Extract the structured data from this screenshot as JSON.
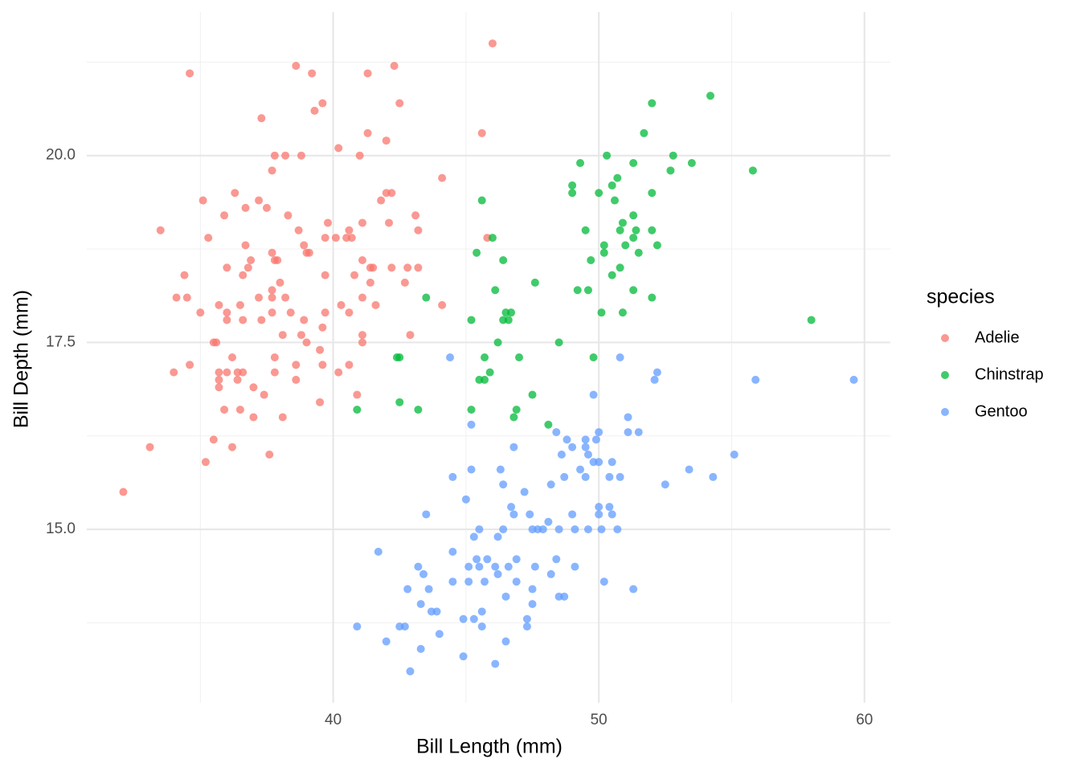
{
  "chart_data": {
    "type": "scatter",
    "x_label": "Bill Length (mm)",
    "y_label": "Bill Depth (mm)",
    "legend_title": "species",
    "legend": "right",
    "grid": true,
    "xlim": [
      30.725,
      60.975
    ],
    "ylim": [
      12.68,
      21.92
    ],
    "xticks": [
      40,
      50,
      60
    ],
    "yticks": [
      {
        "value": 15,
        "label": "15.0"
      },
      {
        "value": 17.5,
        "label": "17.5"
      },
      {
        "value": 20,
        "label": "20.0"
      }
    ],
    "x_minor_ticks": [
      35,
      45,
      55
    ],
    "y_minor_ticks": [
      13.75,
      16.25,
      18.75,
      21.25
    ],
    "series": [
      {
        "name": "Adelie",
        "color": "#F8766D",
        "x": [
          32.1,
          33.1,
          33.5,
          34.0,
          34.1,
          34.4,
          34.5,
          34.6,
          34.6,
          35.0,
          35.1,
          35.2,
          35.3,
          35.5,
          35.5,
          35.6,
          35.7,
          35.7,
          35.7,
          35.7,
          35.9,
          35.9,
          36.0,
          36.0,
          36.0,
          36.0,
          36.2,
          36.2,
          36.3,
          36.4,
          36.4,
          36.5,
          36.5,
          36.6,
          36.6,
          36.6,
          36.7,
          36.7,
          36.8,
          36.9,
          37.0,
          37.0,
          37.2,
          37.2,
          37.3,
          37.3,
          37.4,
          37.5,
          37.6,
          37.7,
          37.7,
          37.7,
          37.7,
          37.7,
          37.8,
          37.8,
          37.8,
          37.8,
          37.9,
          38.0,
          38.1,
          38.1,
          38.2,
          38.2,
          38.3,
          38.4,
          38.6,
          38.6,
          38.6,
          38.7,
          38.8,
          38.8,
          38.9,
          38.9,
          39.0,
          39.0,
          39.1,
          39.2,
          39.3,
          39.5,
          39.5,
          39.6,
          39.6,
          39.6,
          39.7,
          39.7,
          39.7,
          39.8,
          40.1,
          40.2,
          40.2,
          40.3,
          40.5,
          40.6,
          40.6,
          40.6,
          40.7,
          40.8,
          40.9,
          41.0,
          41.1,
          41.1,
          41.1,
          41.1,
          41.1,
          41.3,
          41.3,
          41.4,
          41.5,
          41.4,
          41.6,
          41.8,
          42.0,
          42.0,
          42.1,
          42.2,
          42.3,
          42.5,
          42.7,
          42.8,
          42.9,
          43.1,
          43.2,
          43.2,
          44.1,
          44.1,
          45.6,
          45.8,
          46.0,
          42.2
        ],
        "values": [
          15.5,
          16.1,
          19.0,
          17.1,
          18.1,
          18.4,
          18.1,
          21.1,
          17.2,
          17.9,
          19.4,
          15.9,
          18.9,
          16.2,
          17.5,
          17.5,
          17.1,
          17.0,
          16.9,
          18.0,
          19.2,
          16.6,
          17.8,
          17.9,
          18.5,
          17.1,
          17.3,
          16.1,
          19.5,
          17.1,
          17.0,
          18.0,
          16.6,
          18.4,
          17.8,
          17.1,
          19.3,
          18.8,
          18.5,
          18.6,
          16.9,
          16.5,
          19.4,
          18.1,
          20.5,
          17.8,
          16.8,
          19.3,
          16.0,
          19.8,
          18.7,
          18.2,
          18.1,
          17.9,
          17.3,
          17.1,
          20.0,
          18.6,
          18.6,
          18.3,
          17.6,
          16.5,
          20.0,
          18.1,
          19.2,
          17.9,
          21.2,
          17.2,
          17.0,
          19.0,
          20.0,
          17.6,
          17.8,
          18.8,
          18.7,
          17.5,
          18.7,
          21.1,
          20.6,
          16.7,
          17.4,
          20.7,
          17.7,
          17.2,
          17.9,
          18.4,
          18.9,
          19.1,
          18.9,
          20.1,
          17.1,
          18.0,
          18.9,
          19.0,
          17.9,
          17.2,
          18.9,
          18.4,
          16.8,
          20.0,
          19.1,
          18.1,
          17.6,
          17.5,
          18.6,
          21.1,
          20.3,
          18.5,
          18.5,
          18.3,
          18.0,
          19.4,
          20.2,
          19.5,
          19.1,
          18.5,
          21.2,
          20.7,
          18.3,
          18.5,
          17.6,
          19.2,
          19.0,
          18.5,
          19.7,
          18.0,
          20.3,
          18.9,
          21.5,
          19.5
        ]
      },
      {
        "name": "Chinstrap",
        "color": "#00BA38",
        "x": [
          40.9,
          42.4,
          42.5,
          42.5,
          43.2,
          43.5,
          45.2,
          45.2,
          45.4,
          45.5,
          45.6,
          45.7,
          45.7,
          45.9,
          46.0,
          46.1,
          46.2,
          46.4,
          46.4,
          46.5,
          46.6,
          46.7,
          46.8,
          46.9,
          47.0,
          47.5,
          47.6,
          48.1,
          48.5,
          49.0,
          49.0,
          49.2,
          49.3,
          49.5,
          49.6,
          49.7,
          49.8,
          50.0,
          50.1,
          50.2,
          50.2,
          50.3,
          50.5,
          50.5,
          50.6,
          50.7,
          50.8,
          50.8,
          50.9,
          50.9,
          51.0,
          51.3,
          51.3,
          51.3,
          51.3,
          51.4,
          51.5,
          51.7,
          52.0,
          52.0,
          52.0,
          52.0,
          52.2,
          52.7,
          52.8,
          53.5,
          54.2,
          55.8,
          58.0
        ],
        "values": [
          16.6,
          17.3,
          17.3,
          16.7,
          16.6,
          18.1,
          16.6,
          17.8,
          18.7,
          17.0,
          19.4,
          17.3,
          17.0,
          17.1,
          18.9,
          18.2,
          17.5,
          18.6,
          17.8,
          17.9,
          17.8,
          17.9,
          16.5,
          16.6,
          17.3,
          16.8,
          18.3,
          16.4,
          17.5,
          19.6,
          19.5,
          18.2,
          19.9,
          19.0,
          18.2,
          18.6,
          17.3,
          19.5,
          17.9,
          18.7,
          18.8,
          20.0,
          18.4,
          19.6,
          19.4,
          19.7,
          18.5,
          19.0,
          19.1,
          17.9,
          18.8,
          18.9,
          19.2,
          18.2,
          19.9,
          19.0,
          18.7,
          20.3,
          19.5,
          20.7,
          19.0,
          18.1,
          18.8,
          19.8,
          20.0,
          19.9,
          20.8,
          19.8,
          17.8
        ]
      },
      {
        "name": "Gentoo",
        "color": "#619CFF",
        "x": [
          40.9,
          41.7,
          42.0,
          42.5,
          42.7,
          42.8,
          42.9,
          43.2,
          43.3,
          43.3,
          43.4,
          43.5,
          43.6,
          43.7,
          43.9,
          44.0,
          44.4,
          44.5,
          44.5,
          44.5,
          44.9,
          44.9,
          45.0,
          45.1,
          45.1,
          45.2,
          45.2,
          45.3,
          45.3,
          45.4,
          45.5,
          45.5,
          45.6,
          45.6,
          45.7,
          45.8,
          46.1,
          46.1,
          46.2,
          46.2,
          46.3,
          46.4,
          46.4,
          46.5,
          46.5,
          46.6,
          46.7,
          46.8,
          46.8,
          46.9,
          46.9,
          47.2,
          47.3,
          47.3,
          47.4,
          47.5,
          47.5,
          47.5,
          47.6,
          47.7,
          47.9,
          48.1,
          48.2,
          48.2,
          48.4,
          48.4,
          48.5,
          48.5,
          48.6,
          48.7,
          48.7,
          48.8,
          49.0,
          49.0,
          49.1,
          49.1,
          49.3,
          49.5,
          49.5,
          49.5,
          49.6,
          49.6,
          49.8,
          49.8,
          49.9,
          50.0,
          50.0,
          50.0,
          50.0,
          50.1,
          50.2,
          50.4,
          50.4,
          50.5,
          50.5,
          50.7,
          50.8,
          50.8,
          51.1,
          51.1,
          51.3,
          51.5,
          52.1,
          52.2,
          52.5,
          53.4,
          54.3,
          55.1,
          55.9,
          59.6
        ],
        "values": [
          13.7,
          14.7,
          13.5,
          13.7,
          13.7,
          14.2,
          13.1,
          14.5,
          14.0,
          13.4,
          14.4,
          15.2,
          14.2,
          13.9,
          13.9,
          13.6,
          17.3,
          15.7,
          14.7,
          14.3,
          13.8,
          13.3,
          15.4,
          14.5,
          14.3,
          16.4,
          15.8,
          13.8,
          14.9,
          14.6,
          15.0,
          14.5,
          13.9,
          13.7,
          14.3,
          14.6,
          13.2,
          14.5,
          14.4,
          14.9,
          15.8,
          15.6,
          15.0,
          14.1,
          13.5,
          14.5,
          15.3,
          15.2,
          16.1,
          14.6,
          14.3,
          15.5,
          13.7,
          13.8,
          15.2,
          15.0,
          14.2,
          14.0,
          14.5,
          15.0,
          15.0,
          15.1,
          15.6,
          14.4,
          16.3,
          14.6,
          15.0,
          14.1,
          16.0,
          15.7,
          14.1,
          16.2,
          16.1,
          15.2,
          15.0,
          14.5,
          15.8,
          16.2,
          16.1,
          15.7,
          15.0,
          16.0,
          16.8,
          15.9,
          16.2,
          16.3,
          15.9,
          15.3,
          15.2,
          15.0,
          14.3,
          15.7,
          15.3,
          15.9,
          15.2,
          15.0,
          17.3,
          15.7,
          16.5,
          16.3,
          14.2,
          16.3,
          17.0,
          17.1,
          15.6,
          15.8,
          15.7,
          16.0,
          17.0,
          17.0
        ]
      }
    ]
  }
}
